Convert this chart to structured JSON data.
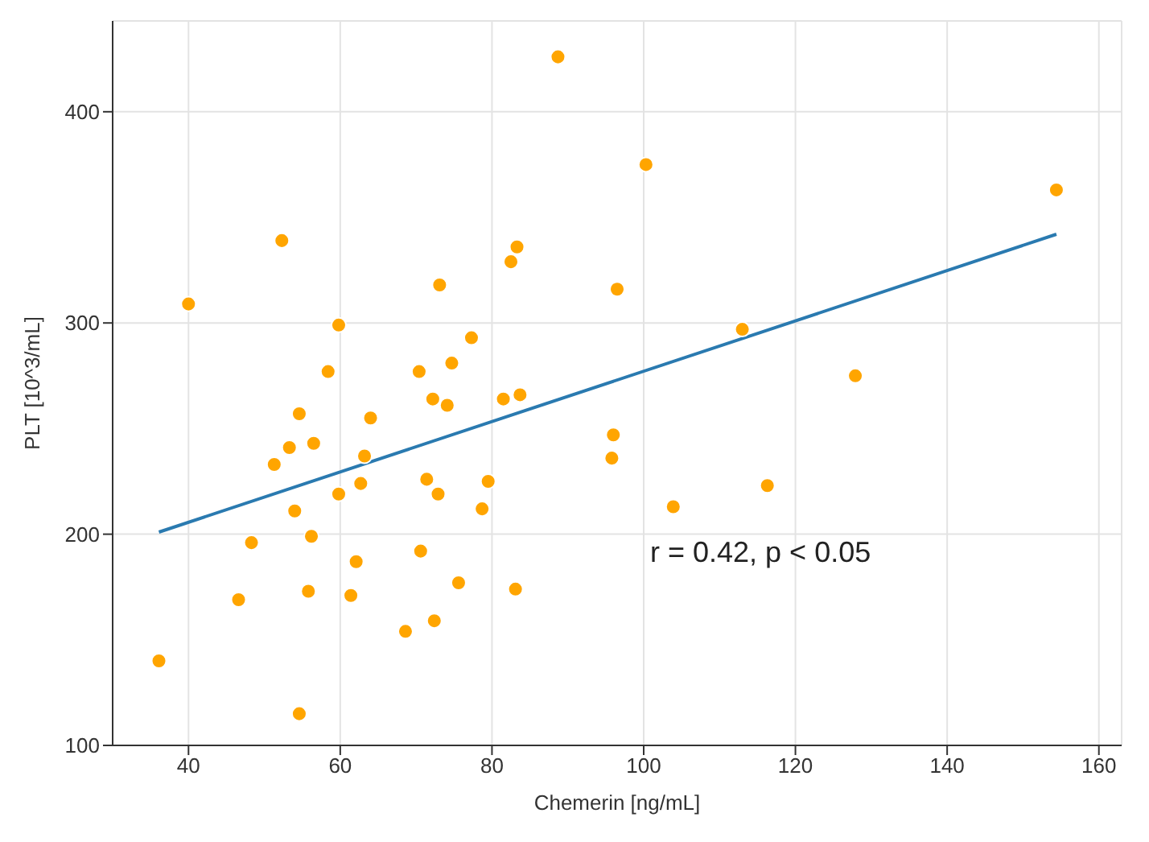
{
  "chart_data": {
    "type": "scatter",
    "xlabel": "Chemerin [ng/mL]",
    "ylabel": "PLT [10^3/mL]",
    "annotations": [
      "r = 0.42, p < 0.05"
    ],
    "xlim": [
      30,
      163
    ],
    "xticks": [
      40,
      60,
      80,
      100,
      120,
      140,
      160
    ],
    "ylim": [
      100,
      443
    ],
    "yticks": [
      100,
      200,
      300,
      400
    ],
    "grid": true,
    "series": [
      {
        "marker": "circle",
        "color": "#ffa500",
        "x": [
          52.3,
          40.0,
          59.8,
          73.1,
          82.5,
          83.3,
          77.3,
          74.7,
          70.4,
          58.4,
          72.2,
          74.1,
          81.5,
          83.7,
          54.6,
          64.0,
          53.3,
          56.5,
          51.3,
          63.2,
          59.8,
          62.7,
          71.4,
          72.9,
          79.5,
          78.7,
          54.0,
          48.3,
          56.2,
          70.6,
          62.1,
          75.6,
          83.1,
          46.6,
          55.8,
          61.4,
          72.4,
          68.6,
          36.1,
          54.6,
          88.7,
          100.3,
          154.4,
          96.5,
          113.0,
          127.9,
          96.0,
          95.8,
          116.3,
          103.9
        ],
        "values": [
          339,
          309,
          299,
          318,
          329,
          336,
          293,
          281,
          277,
          277,
          264,
          261,
          264,
          266,
          257,
          255,
          241,
          243,
          233,
          237,
          219,
          224,
          226,
          219,
          225,
          212,
          211,
          196,
          199,
          192,
          187,
          177,
          174,
          169,
          173,
          171,
          159,
          154,
          140,
          115,
          426,
          375,
          363,
          316,
          297,
          275,
          247,
          236,
          223,
          213
        ]
      },
      {
        "type": "line",
        "color": "#2a7ab0",
        "line_style": "solid",
        "marker": "none",
        "x": [
          36.1,
          154.4
        ],
        "values": [
          201,
          342
        ]
      }
    ]
  }
}
